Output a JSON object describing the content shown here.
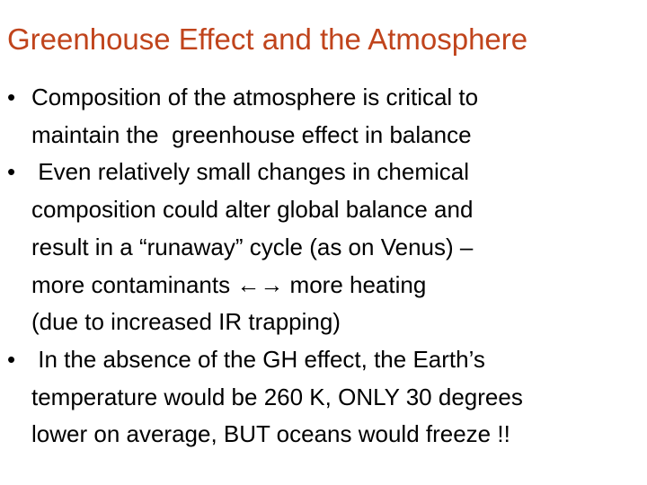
{
  "title": "Greenhouse Effect and the Atmosphere",
  "bullets": [
    {
      "lines": [
        "Composition of the atmosphere is critical to",
        "maintain the  greenhouse effect in balance"
      ]
    },
    {
      "lines": [
        " Even relatively small changes in chemical",
        "composition could alter global balance and",
        "result in a “runaway” cycle (as on Venus) –",
        "more contaminants ←→ more heating",
        "(due to increased IR trapping)"
      ]
    },
    {
      "lines": [
        " In the absence of the GH effect, the Earth’s",
        "temperature would be 260 K, ONLY 30 degrees",
        "lower on average, BUT oceans would freeze !!"
      ]
    }
  ]
}
